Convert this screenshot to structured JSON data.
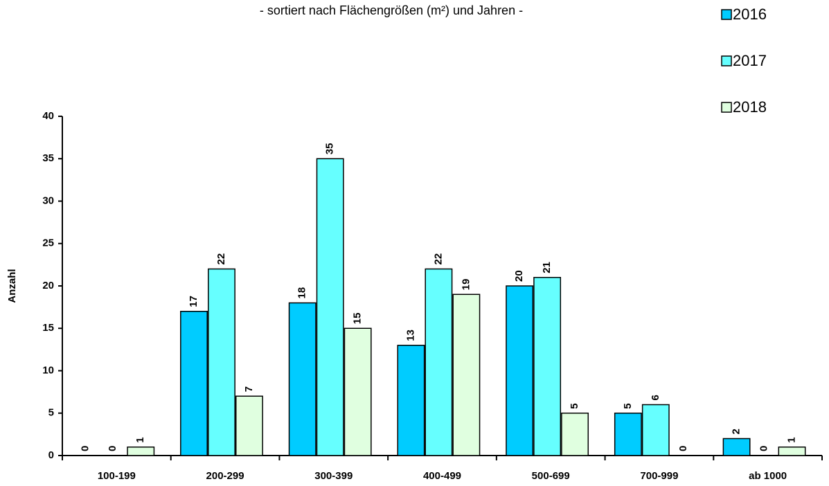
{
  "chart_data": {
    "type": "bar",
    "subtitle": "- sortiert nach Flächengrößen (m²) und Jahren -",
    "y_label": "Anzahl",
    "categories": [
      "100-199",
      "200-299",
      "300-399",
      "400-499",
      "500-699",
      "700-999",
      "ab 1000"
    ],
    "series": [
      {
        "name": "2016",
        "color": "#00ccff",
        "values": [
          0,
          17,
          18,
          13,
          20,
          5,
          2
        ]
      },
      {
        "name": "2017",
        "color": "#66ffff",
        "values": [
          0,
          22,
          35,
          22,
          21,
          6,
          0
        ]
      },
      {
        "name": "2018",
        "color": "#e0ffe0",
        "values": [
          1,
          7,
          15,
          19,
          5,
          0,
          1
        ]
      }
    ],
    "ylim": [
      0,
      40
    ],
    "yticks": [
      0,
      5,
      10,
      15,
      20,
      25,
      30,
      35,
      40
    ],
    "legend": "top-right",
    "grid": false
  }
}
